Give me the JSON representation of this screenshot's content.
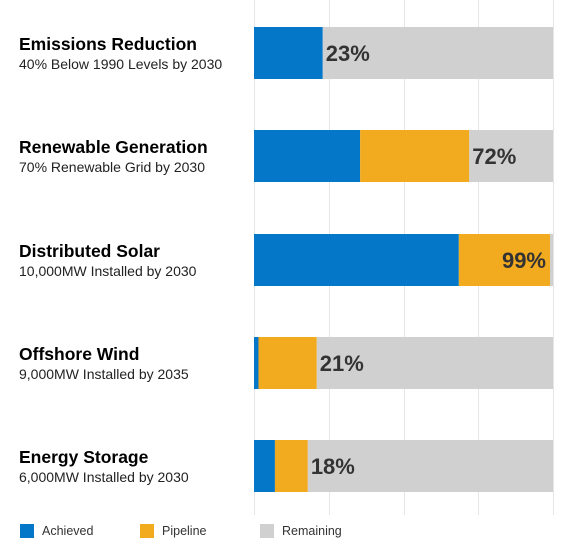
{
  "chart_data": {
    "type": "bar",
    "orientation": "horizontal",
    "stacked": true,
    "xlim": [
      0,
      100
    ],
    "grid": true,
    "legend_position": "bottom",
    "colors": {
      "Achieved": "#0477c9",
      "Pipeline": "#f2aa1f",
      "Remaining": "#d0d0d0"
    },
    "categories": [
      "Emissions Reduction",
      "Renewable Generation",
      "Distributed Solar",
      "Offshore Wind",
      "Energy Storage"
    ],
    "subtitles": [
      "40% Below 1990 Levels by 2030",
      "70% Renewable Grid by 2030",
      "10,000MW Installed by 2030",
      "9,000MW Installed by 2035",
      "6,000MW Installed by 2030"
    ],
    "data_labels": [
      "23%",
      "72%",
      "99%",
      "21%",
      "18%"
    ],
    "series": [
      {
        "name": "Achieved",
        "values": [
          23,
          35.5,
          68.5,
          1.5,
          7
        ]
      },
      {
        "name": "Pipeline",
        "values": [
          0,
          36.5,
          30.5,
          19.5,
          11
        ]
      },
      {
        "name": "Remaining",
        "values": [
          77,
          28,
          1,
          79,
          82
        ]
      }
    ]
  }
}
